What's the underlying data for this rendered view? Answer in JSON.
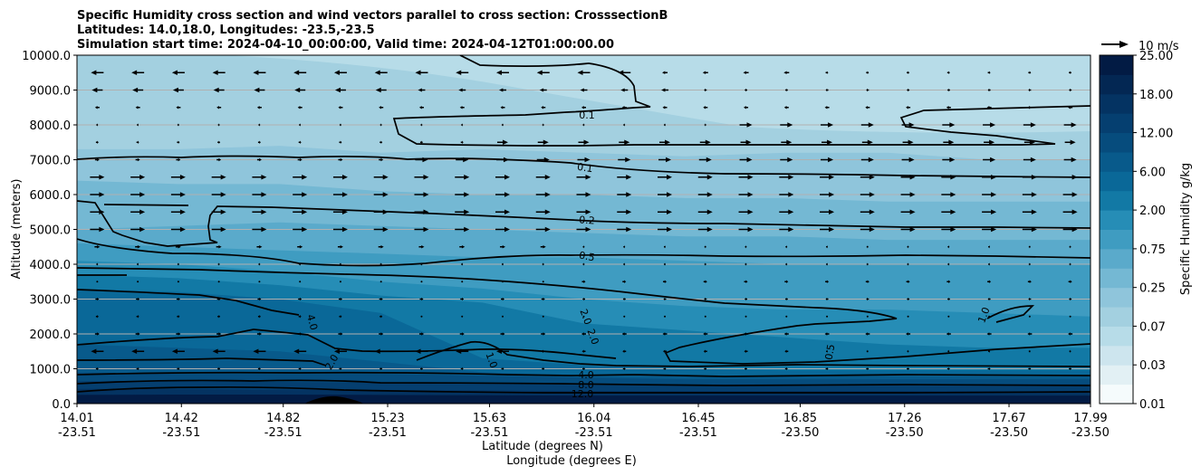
{
  "chart_data": {
    "type": "contourf",
    "title_lines": [
      "Specific Humidity cross section and wind vectors parallel to cross section: CrosssectionB",
      "Latitudes: 14.0,18.0, Longitudes: -23.5,-23.5",
      "Simulation start time: 2024-04-10_00:00:00, Valid time: 2024-04-12T01:00:00.00"
    ],
    "ylabel": "Altitude (meters)",
    "xlabel_lat": "Latitude (degrees N)",
    "xlabel_lon": "Longitude (degrees E)",
    "ylim": [
      0,
      10000
    ],
    "yticks": [
      "0.0",
      "1000.0",
      "2000.0",
      "3000.0",
      "4000.0",
      "5000.0",
      "6000.0",
      "7000.0",
      "8000.0",
      "9000.0",
      "10000.0"
    ],
    "xticks": [
      {
        "lat": "14.01",
        "lon": "-23.51"
      },
      {
        "lat": "14.42",
        "lon": "-23.51"
      },
      {
        "lat": "14.82",
        "lon": "-23.51"
      },
      {
        "lat": "15.23",
        "lon": "-23.51"
      },
      {
        "lat": "15.63",
        "lon": "-23.51"
      },
      {
        "lat": "16.04",
        "lon": "-23.51"
      },
      {
        "lat": "16.45",
        "lon": "-23.51"
      },
      {
        "lat": "16.85",
        "lon": "-23.50"
      },
      {
        "lat": "17.26",
        "lon": "-23.50"
      },
      {
        "lat": "17.67",
        "lon": "-23.50"
      },
      {
        "lat": "17.99",
        "lon": "-23.50"
      }
    ],
    "colorbar": {
      "label": "Specific Humidity g/kg",
      "ticks": [
        "0.01",
        "0.03",
        "0.07",
        "0.25",
        "0.75",
        "2.00",
        "6.00",
        "12.00",
        "18.00",
        "25.00"
      ],
      "levels": [
        0.01,
        0.02,
        0.03,
        0.05,
        0.07,
        0.1,
        0.25,
        0.5,
        0.75,
        1.0,
        2.0,
        4.0,
        6.0,
        8.0,
        12.0,
        15.0,
        18.0,
        20.0,
        25.0
      ],
      "colors": [
        "#f5fbfc",
        "#e2f0f4",
        "#cde5ee",
        "#b7dce8",
        "#a3d0e0",
        "#8fc5db",
        "#74b8d3",
        "#5aaacb",
        "#3f9cc1",
        "#268db6",
        "#1279a5",
        "#0a6898",
        "#085a8b",
        "#064c7d",
        "#053f70",
        "#043362",
        "#032753",
        "#021b44"
      ]
    },
    "contour_labels": [
      "0.1",
      "0.1",
      "0.2",
      "0.5",
      "4.0",
      "2.0",
      "2.0",
      "2.0",
      "1.0",
      "0.5",
      "1.0",
      "4.0",
      "8.0",
      "12.0"
    ],
    "wind_key": {
      "label": "10 m/s"
    },
    "colors": {
      "arrow": "#000000",
      "terrain": "#000000",
      "grid": "#b0b0b0"
    }
  }
}
